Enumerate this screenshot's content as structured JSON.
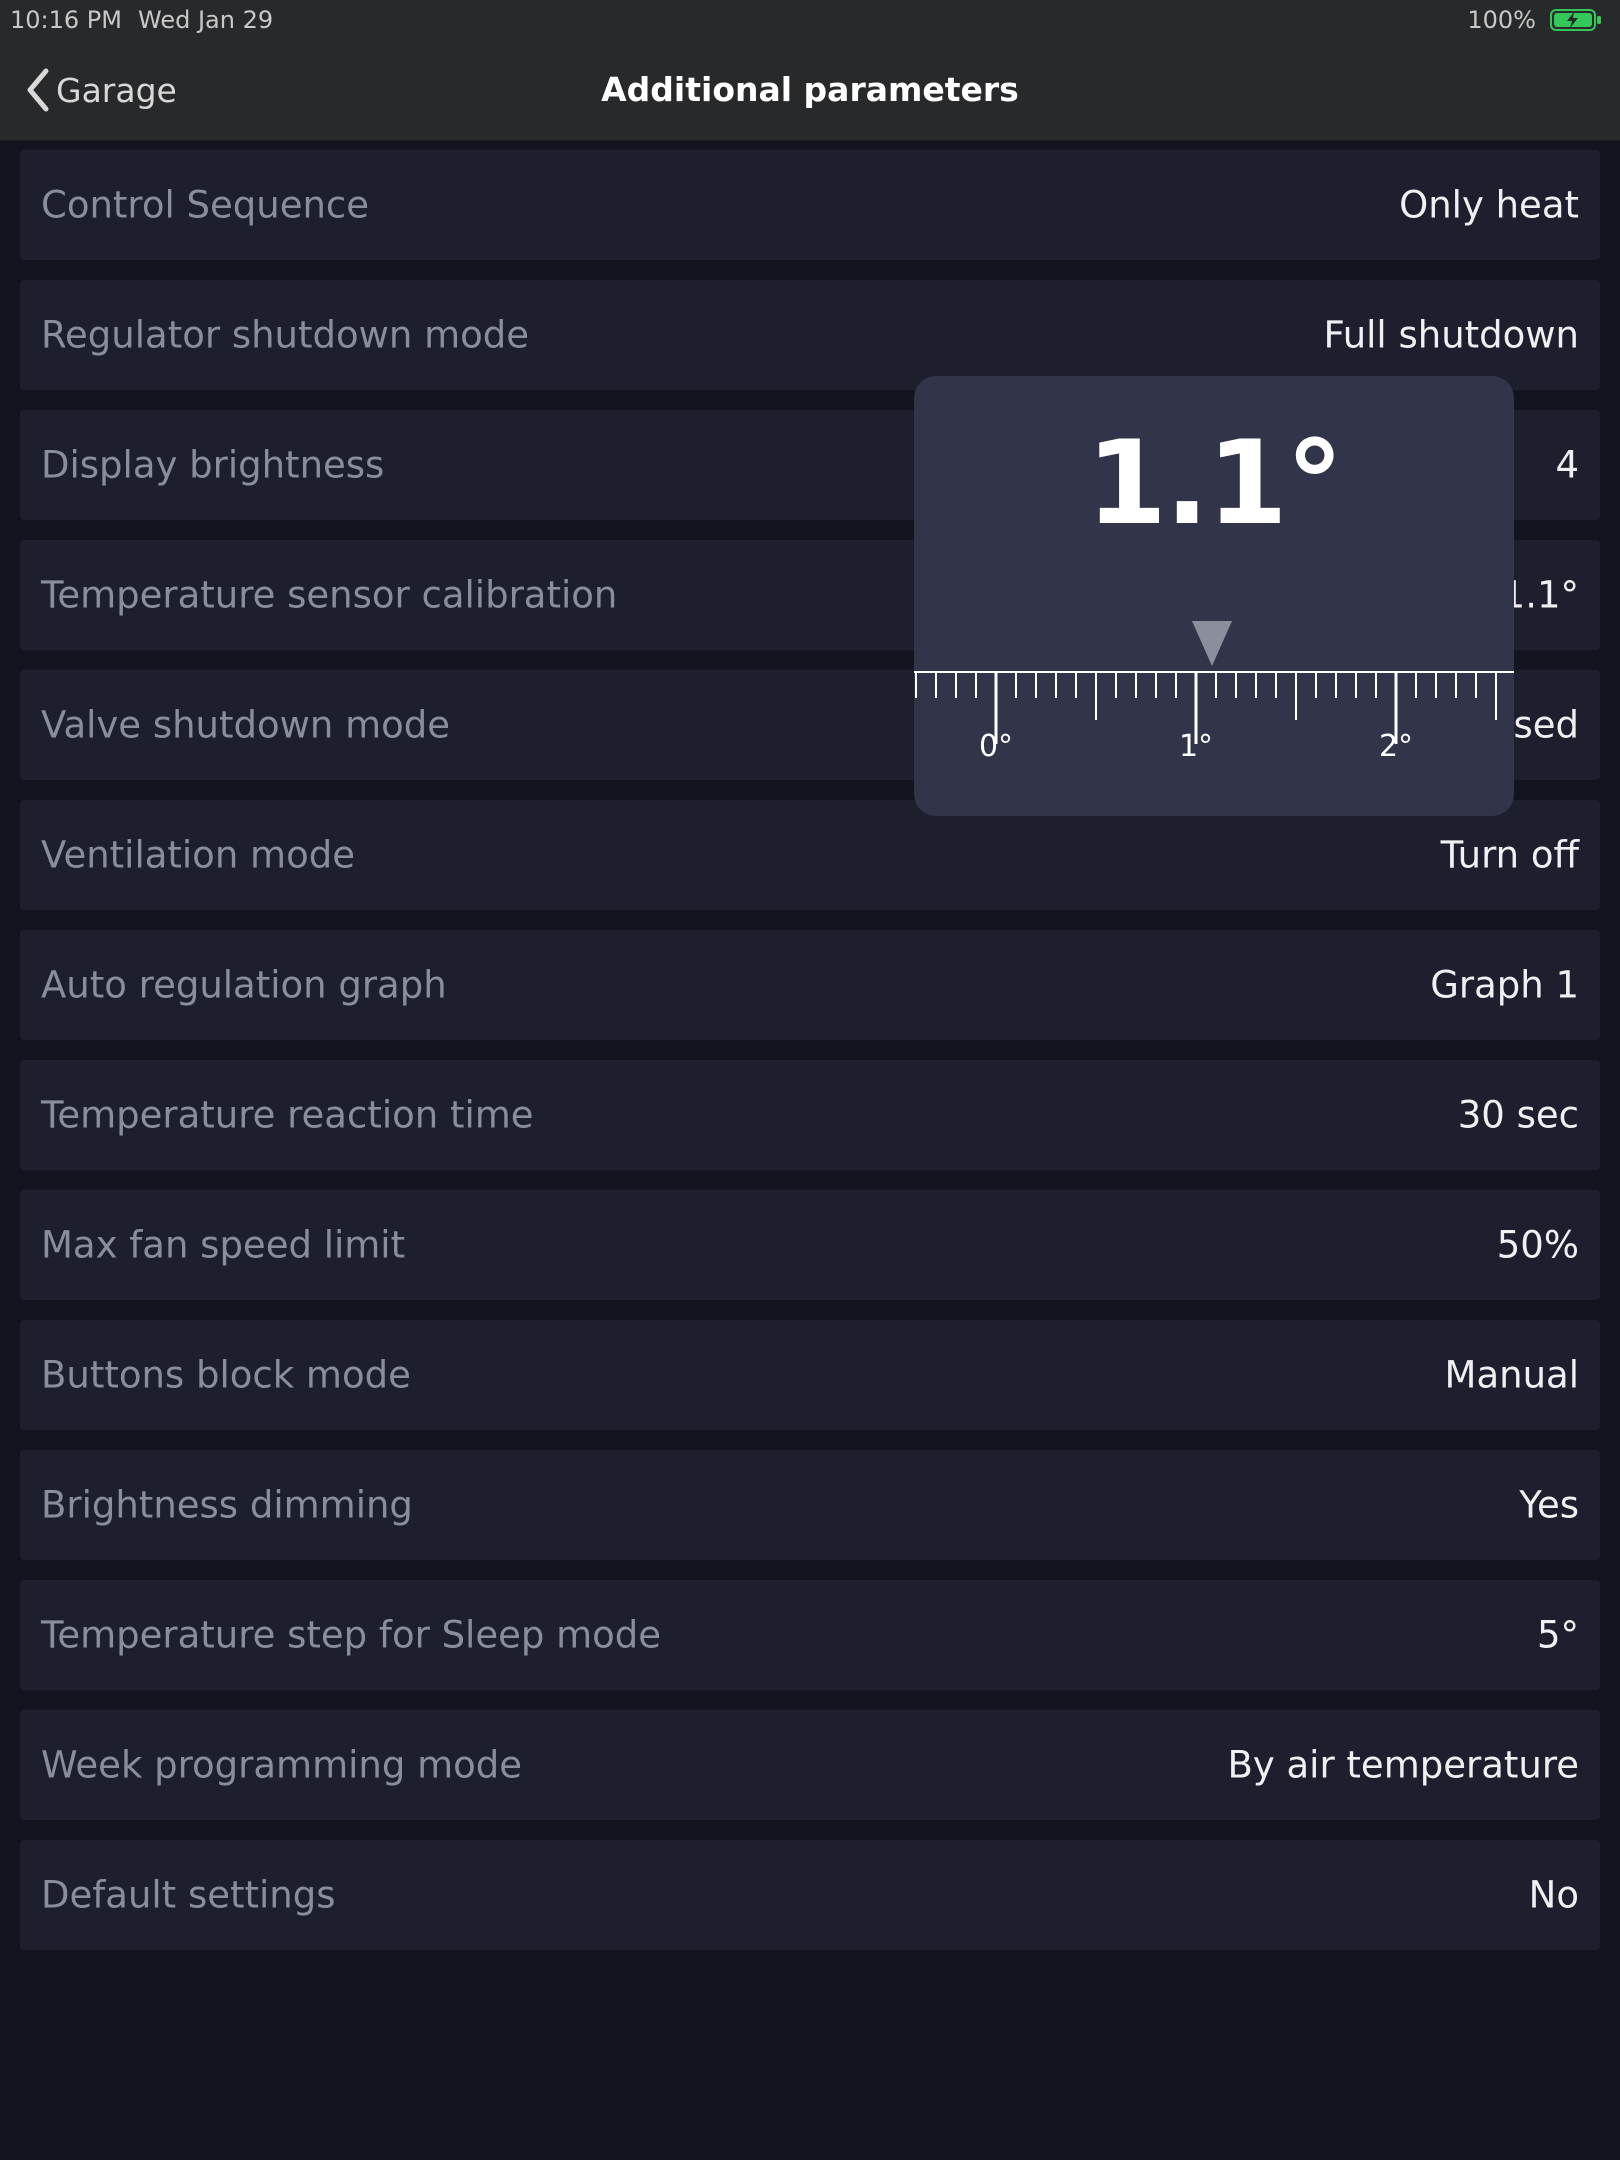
{
  "status_bar": {
    "time": "10:16 PM",
    "date": "Wed Jan 29",
    "battery": "100%"
  },
  "nav": {
    "back_label": "Garage",
    "title": "Additional parameters"
  },
  "settings": [
    {
      "label": "Control Sequence",
      "value": "Only heat"
    },
    {
      "label": "Regulator shutdown mode",
      "value": "Full shutdown"
    },
    {
      "label": "Display brightness",
      "value": "4"
    },
    {
      "label": "Temperature sensor calibration",
      "value": "1.1°"
    },
    {
      "label": "Valve shutdown mode",
      "value": "Closed"
    },
    {
      "label": "Ventilation mode",
      "value": "Turn off"
    },
    {
      "label": "Auto regulation graph",
      "value": "Graph 1"
    },
    {
      "label": "Temperature reaction time",
      "value": "30 sec"
    },
    {
      "label": "Max fan speed limit",
      "value": "50%"
    },
    {
      "label": "Buttons block mode",
      "value": "Manual"
    },
    {
      "label": "Brightness dimming",
      "value": "Yes"
    },
    {
      "label": "Temperature step for Sleep mode",
      "value": "5°"
    },
    {
      "label": "Week programming mode",
      "value": "By air temperature"
    },
    {
      "label": "Default settings",
      "value": "No"
    }
  ],
  "picker": {
    "value_display": "1.1°",
    "current_value": 1.1,
    "tick_labels": [
      "0°",
      "1°",
      "2°"
    ]
  },
  "colors": {
    "background": "#12141f",
    "row": "#1d1f2e",
    "bar": "#28292b",
    "popup": "#323549",
    "battery": "#34c759"
  }
}
